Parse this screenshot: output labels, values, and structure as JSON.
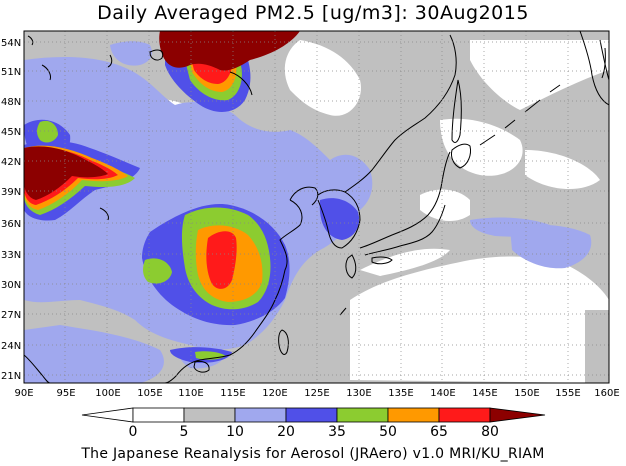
{
  "title": "Daily Averaged PM2.5 [ug/m3]: 30Aug2015",
  "footer": "The Japanese Reanalysis for Aerosol (JRAero) v1.0 MRI/KU_RIAM",
  "x_ticks": [
    "90E",
    "95E",
    "100E",
    "105E",
    "110E",
    "115E",
    "120E",
    "125E",
    "130E",
    "135E",
    "140E",
    "145E",
    "150E",
    "155E",
    "160E"
  ],
  "y_ticks": [
    "54N",
    "51N",
    "48N",
    "45N",
    "42N",
    "39N",
    "36N",
    "33N",
    "30N",
    "27N",
    "24N",
    "21N"
  ],
  "colorbar": {
    "labels": [
      "0",
      "5",
      "10",
      "20",
      "35",
      "50",
      "65",
      "80"
    ],
    "colors": [
      "#ffffff",
      "#ffffff",
      "#c0c0c0",
      "#a0a8ee",
      "#5050e8",
      "#8ccc30",
      "#ff9900",
      "#ff1a1a",
      "#8c0000"
    ]
  },
  "colors": {
    "level_5_10": "#c0c0c0",
    "level_10_20": "#a0a8ee",
    "level_20_35": "#5050e8",
    "level_35_50": "#8ccc30",
    "level_50_65": "#ff9900",
    "level_65_80": "#ff1a1a",
    "level_80_plus": "#8c0000",
    "coastline": "#000000"
  }
}
